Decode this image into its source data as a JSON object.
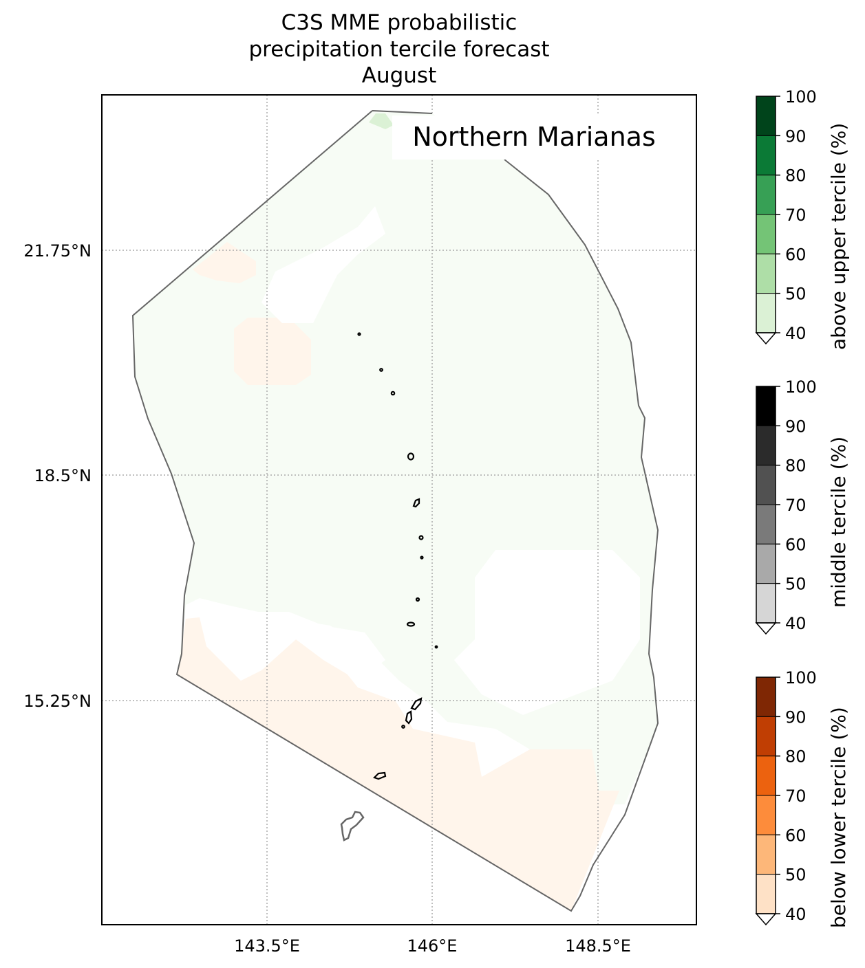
{
  "title": {
    "line1": "C3S MME probabilistic",
    "line2": "precipitation tercile forecast",
    "line3": "August"
  },
  "map": {
    "region_label": "Northern Marianas",
    "lat_ticks": [
      "21.75°N",
      "18.5°N",
      "15.25°N"
    ],
    "lon_ticks": [
      "143.5°E",
      "146°E",
      "148.5°E"
    ],
    "gridline_style": "dotted",
    "colors": {
      "above_light": "#f7fcf5",
      "above_40_50": "#dbf1d5",
      "below_light": "#fff5eb",
      "boundary": "#666666",
      "islands": "#000000",
      "guam": "#666666"
    }
  },
  "colorbars": [
    {
      "label": "above upper tercile (%)",
      "ticks": [
        "100",
        "90",
        "80",
        "70",
        "60",
        "50",
        "40"
      ],
      "colors": [
        "#00441b",
        "#0b7a36",
        "#37a055",
        "#74c476",
        "#aedea7",
        "#dbf1d5"
      ]
    },
    {
      "label": "middle tercile (%)",
      "ticks": [
        "100",
        "90",
        "80",
        "70",
        "60",
        "50",
        "40"
      ],
      "colors": [
        "#000000",
        "#2b2b2b",
        "#515151",
        "#7a7a7a",
        "#a9a9a9",
        "#d6d6d6"
      ]
    },
    {
      "label": "below lower tercile (%)",
      "ticks": [
        "100",
        "90",
        "80",
        "70",
        "60",
        "50",
        "40"
      ],
      "colors": [
        "#7f2704",
        "#c03e03",
        "#ec620f",
        "#fd8c3b",
        "#fdb779",
        "#fee1c6"
      ]
    }
  ]
}
